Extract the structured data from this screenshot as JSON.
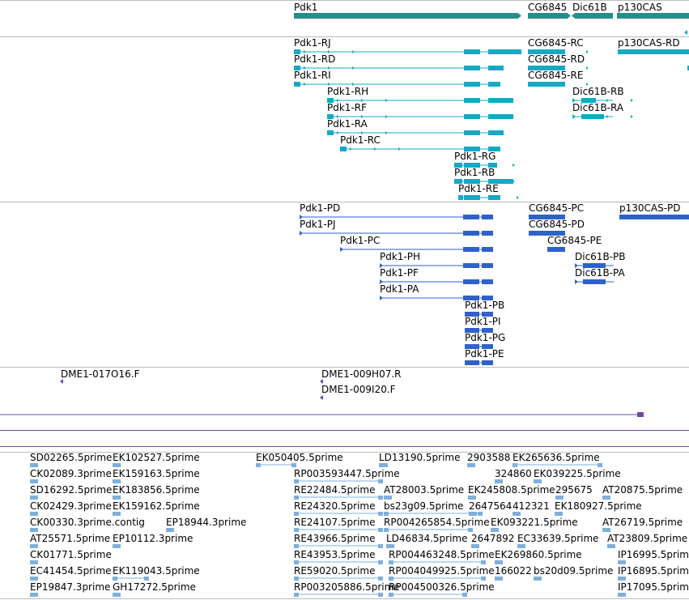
{
  "colors": {
    "gene": "#2a8b8b",
    "transcript": "#17a8c4",
    "protein": "#2f62c9",
    "est": "#6a4ea0",
    "cdna": "#7fb0dc",
    "divider": "#bbbbbb"
  },
  "genes": {
    "pdk1": "Pdk1",
    "cg6845": "CG6845",
    "dic61b": "Dic61B",
    "p130cas": "p130CAS"
  },
  "transcripts": {
    "pdk1_rj": "Pdk1-RJ",
    "pdk1_rd": "Pdk1-RD",
    "pdk1_ri": "Pdk1-RI",
    "pdk1_rh": "Pdk1-RH",
    "pdk1_rf": "Pdk1-RF",
    "pdk1_ra": "Pdk1-RA",
    "pdk1_rc": "Pdk1-RC",
    "pdk1_rg": "Pdk1-RG",
    "pdk1_rb": "Pdk1-RB",
    "pdk1_re": "Pdk1-RE",
    "cg6845_rc": "CG6845-RC",
    "cg6845_rd": "CG6845-RD",
    "cg6845_re": "CG6845-RE",
    "dic61b_rb": "Dic61B-RB",
    "dic61b_ra": "Dic61B-RA",
    "p130cas_rd": "p130CAS-RD"
  },
  "proteins": {
    "pdk1_pd": "Pdk1-PD",
    "pdk1_pj": "Pdk1-PJ",
    "pdk1_pc": "Pdk1-PC",
    "pdk1_ph": "Pdk1-PH",
    "pdk1_pf": "Pdk1-PF",
    "pdk1_pa": "Pdk1-PA",
    "pdk1_pb": "Pdk1-PB",
    "pdk1_pi": "Pdk1-PI",
    "pdk1_pg": "Pdk1-PG",
    "pdk1_pe": "Pdk1-PE",
    "cg6845_pc": "CG6845-PC",
    "cg6845_pd": "CG6845-PD",
    "cg6845_pe": "CG6845-PE",
    "dic61b_pb": "Dic61B-PB",
    "dic61b_pa": "Dic61B-PA",
    "p130cas_pd": "p130CAS-PD"
  },
  "est_clones": {
    "c1": "DME1-017O16.F",
    "c2": "DME1-009H07.R",
    "c3": "DME1-009I20.F"
  },
  "cdna": {
    "r1": [
      "SD02265.5prime",
      "EK102527.5prime",
      "EK050405.5prime",
      "LD13190.5prime",
      "2903588",
      "EK265636.5prime"
    ],
    "r2": [
      "CK02089.3prime",
      "EK159163.5prime",
      "RP003593447.5prime",
      "324860",
      "EK039225.5prime"
    ],
    "r3": [
      "SD16292.5prime",
      "EK183856.5prime",
      "RE22484.5prime",
      "AT28003.5prime",
      "EK245808.5prime",
      "295675",
      "AT20875.5prime"
    ],
    "r4": [
      "CK02429.3prime",
      "EK159162.5prime",
      "RE24320.5prime",
      "bs23g09.5prime",
      "2647564",
      "412321",
      "EK180927.5prime"
    ],
    "r5": [
      "CK00330.3prime.contig",
      "EP18944.3prime",
      "RE24107.5prime",
      "RP004265854.5prime",
      "EK093221.5prime",
      "AT26719.5prime"
    ],
    "r6": [
      "AT25571.5prime",
      "EP10112.3prime",
      "RE43966.5prime",
      "LD46834.5prime",
      "2647892",
      "EC33639.5prime",
      "AT23809.5prime"
    ],
    "r7": [
      "CK01771.5prime",
      "RE43953.5prime",
      "RP004463248.5prime",
      "EK269860.5prime",
      "IP16995.5prime"
    ],
    "r8": [
      "EC41454.5prime",
      "EK119043.5prime",
      "RE59020.5prime",
      "RP004049925.5prime",
      "166022",
      "bs20d09.5prime",
      "IP16895.5prime"
    ],
    "r9": [
      "EP19847.3prime",
      "GH17272.5prime",
      "RP003205886.5prime",
      "RP004500326.5prime",
      "IP17095.5prime"
    ]
  }
}
